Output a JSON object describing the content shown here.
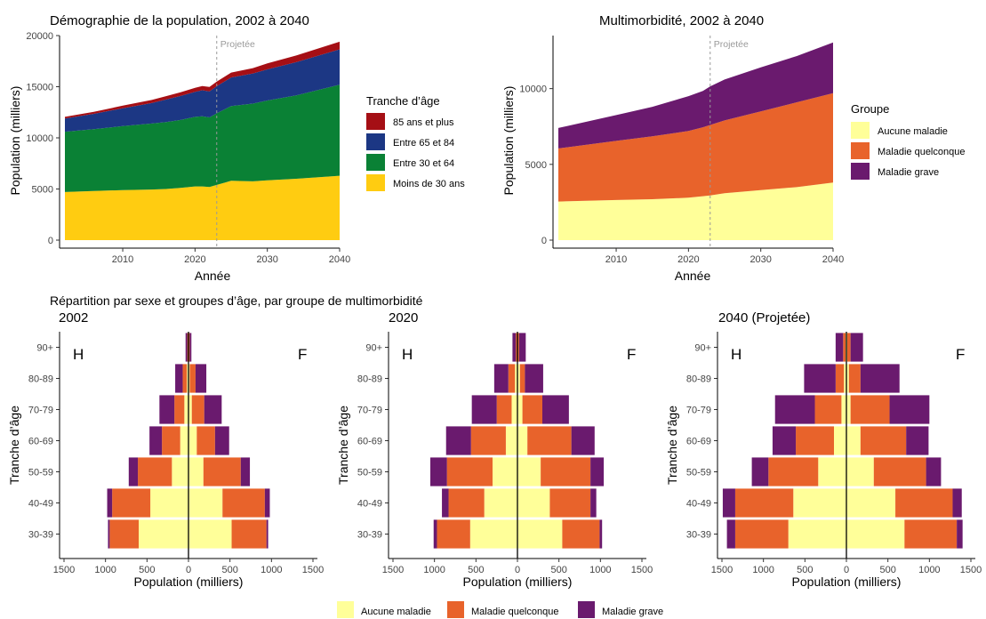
{
  "colors": {
    "age_85": "#A50F15",
    "age_65": "#1C3784",
    "age_30": "#0A8135",
    "age_u30": "#FFCC11",
    "none": "#FFFF99",
    "any": "#E8632B",
    "severe": "#6A1A6E"
  },
  "chart_data": [
    {
      "type": "area",
      "title": "Démographie de la population, 2002 à 2040",
      "xlabel": "Année",
      "ylabel": "Population (milliers)",
      "xlim": [
        2002,
        2040
      ],
      "ylim": [
        0,
        20000
      ],
      "x_ticks": [
        2010,
        2020,
        2030,
        2040
      ],
      "y_ticks": [
        0,
        5000,
        10000,
        15000,
        20000
      ],
      "annotation": {
        "x": 2023,
        "label": "Projetée"
      },
      "legend": {
        "title": "Tranche d’âge",
        "position": "right"
      },
      "x": [
        2002,
        2006,
        2010,
        2014,
        2016,
        2018,
        2020,
        2021,
        2022,
        2023,
        2025,
        2028,
        2030,
        2034,
        2040
      ],
      "series": [
        {
          "name": "Moins de 30 ans",
          "color_key": "age_u30",
          "values": [
            4700,
            4800,
            4900,
            4950,
            5000,
            5100,
            5250,
            5250,
            5200,
            5400,
            5800,
            5750,
            5850,
            6000,
            6300
          ]
        },
        {
          "name": "Entre 30 et 64",
          "color_key": "age_30",
          "values": [
            5900,
            6050,
            6250,
            6450,
            6550,
            6650,
            6800,
            6850,
            6800,
            7000,
            7300,
            7600,
            7800,
            8150,
            8900
          ]
        },
        {
          "name": "Entre 65 et 84",
          "color_key": "age_65",
          "values": [
            1300,
            1500,
            1750,
            2000,
            2200,
            2350,
            2450,
            2550,
            2550,
            2650,
            2800,
            2950,
            3050,
            3250,
            3450
          ]
        },
        {
          "name": "85 ans et plus",
          "color_key": "age_85",
          "values": [
            150,
            200,
            250,
            300,
            330,
            360,
            400,
            420,
            420,
            450,
            480,
            520,
            580,
            650,
            750
          ]
        }
      ]
    },
    {
      "type": "area",
      "title": "Multimorbidité, 2002 à 2040",
      "xlabel": "Année",
      "ylabel": "Population (milliers)",
      "xlim": [
        2002,
        2040
      ],
      "ylim": [
        0,
        13500
      ],
      "x_ticks": [
        2010,
        2020,
        2030,
        2040
      ],
      "y_ticks": [
        0,
        5000,
        10000
      ],
      "annotation": {
        "x": 2023,
        "label": "Projetée"
      },
      "legend": {
        "title": "Groupe",
        "position": "right"
      },
      "x": [
        2002,
        2010,
        2015,
        2020,
        2022,
        2023,
        2025,
        2030,
        2035,
        2040
      ],
      "series": [
        {
          "name": "Aucune maladie",
          "color_key": "none",
          "values": [
            2550,
            2650,
            2700,
            2800,
            2900,
            2950,
            3100,
            3300,
            3500,
            3800
          ]
        },
        {
          "name": "Maladie quelconque",
          "color_key": "any",
          "values": [
            3500,
            3900,
            4150,
            4400,
            4550,
            4650,
            4800,
            5200,
            5600,
            5900
          ]
        },
        {
          "name": "Maladie grave",
          "color_key": "severe",
          "values": [
            1350,
            1700,
            1950,
            2300,
            2400,
            2550,
            2700,
            2900,
            3050,
            3350
          ]
        }
      ]
    },
    {
      "type": "bar",
      "title": "Répartition par sexe et groupes d’âge, par groupe de multimorbidité",
      "orientation": "horizontal",
      "xlabel": "Population (milliers)",
      "ylabel": "Tranche d’âge",
      "xlim": [
        -1500,
        1500
      ],
      "x_ticks": [
        -1500,
        -1000,
        -500,
        0,
        500,
        1000,
        1500
      ],
      "x_tick_labels": [
        "1500",
        "1000",
        "500",
        "0",
        "500",
        "1000",
        "1500"
      ],
      "categories": [
        "30-39",
        "40-49",
        "50-59",
        "60-69",
        "70-79",
        "80-89",
        "90+"
      ],
      "sides": {
        "left": "H",
        "right": "F"
      },
      "legend": {
        "position": "bottom",
        "entries": [
          "Aucune maladie",
          "Maladie quelconque",
          "Maladie grave"
        ]
      },
      "panels": [
        {
          "subtitle": "2002",
          "male": {
            "Aucune maladie": [
              600,
              460,
              200,
              100,
              50,
              20,
              5
            ],
            "Maladie quelconque": [
              350,
              460,
              410,
              220,
              120,
              50,
              10
            ],
            "Maladie grave": [
              20,
              60,
              110,
              150,
              180,
              90,
              20
            ]
          },
          "female": {
            "Aucune maladie": [
              520,
              410,
              180,
              100,
              40,
              15,
              5
            ],
            "Maladie quelconque": [
              420,
              510,
              450,
              220,
              150,
              70,
              10
            ],
            "Maladie grave": [
              20,
              60,
              110,
              170,
              210,
              130,
              20
            ]
          }
        },
        {
          "subtitle": "2020",
          "male": {
            "Aucune maladie": [
              570,
              400,
              300,
              140,
              70,
              30,
              5
            ],
            "Maladie quelconque": [
              400,
              430,
              550,
              420,
              180,
              80,
              15
            ],
            "Maladie grave": [
              40,
              80,
              200,
              300,
              300,
              170,
              40
            ]
          },
          "female": {
            "Aucune maladie": [
              540,
              390,
              280,
              120,
              60,
              30,
              5
            ],
            "Maladie quelconque": [
              450,
              490,
              600,
              530,
              240,
              60,
              15
            ],
            "Maladie grave": [
              30,
              70,
              160,
              280,
              320,
              220,
              80
            ]
          }
        },
        {
          "subtitle": "2040 (Projetée)",
          "male": {
            "Aucune maladie": [
              700,
              640,
              340,
              150,
              60,
              30,
              10
            ],
            "Maladie quelconque": [
              640,
              700,
              600,
              460,
              320,
              100,
              30
            ],
            "Maladie grave": [
              100,
              150,
              200,
              280,
              480,
              380,
              90
            ]
          },
          "female": {
            "Aucune maladie": [
              700,
              590,
              330,
              170,
              50,
              30,
              10
            ],
            "Maladie quelconque": [
              630,
              690,
              630,
              550,
              470,
              140,
              40
            ],
            "Maladie grave": [
              70,
              110,
              180,
              270,
              480,
              470,
              150
            ]
          }
        }
      ]
    }
  ]
}
